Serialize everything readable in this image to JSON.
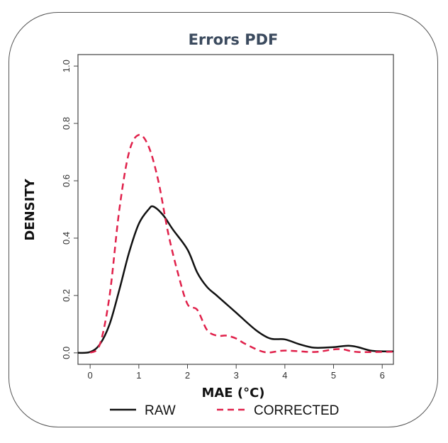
{
  "chart_data": {
    "type": "line",
    "title": "Errors PDF",
    "xlabel": "MAE (°C)",
    "ylabel": "DENSITY",
    "xlim": [
      -0.25,
      6.23
    ],
    "ylim": [
      -0.04,
      1.04
    ],
    "xticks": [
      "0",
      "1",
      "2",
      "3",
      "4",
      "5",
      "6"
    ],
    "yticks": [
      "0.0",
      "0.2",
      "0.4",
      "0.6",
      "0.8",
      "1.0"
    ],
    "grid": false,
    "legend_position": "bottom",
    "series": [
      {
        "name": "RAW",
        "color": "#111111",
        "style": "solid",
        "x": [
          -0.25,
          0,
          0.2,
          0.4,
          0.6,
          0.8,
          1.0,
          1.2,
          1.3,
          1.5,
          1.7,
          2.0,
          2.2,
          2.4,
          2.6,
          2.8,
          3.0,
          3.4,
          3.7,
          4.0,
          4.3,
          4.6,
          5.0,
          5.3,
          5.5,
          5.8,
          6.23
        ],
        "y": [
          0,
          0.003,
          0.03,
          0.1,
          0.22,
          0.35,
          0.45,
          0.5,
          0.51,
          0.48,
          0.43,
          0.36,
          0.28,
          0.23,
          0.2,
          0.17,
          0.14,
          0.08,
          0.05,
          0.047,
          0.03,
          0.018,
          0.02,
          0.025,
          0.02,
          0.007,
          0.005
        ]
      },
      {
        "name": "CORRECTED",
        "color": "#e0204a",
        "style": "dashed",
        "x": [
          0,
          0.2,
          0.4,
          0.6,
          0.8,
          1.0,
          1.2,
          1.4,
          1.6,
          1.8,
          2.0,
          2.2,
          2.4,
          2.6,
          2.8,
          3.0,
          3.2,
          3.6,
          4.0,
          4.6,
          5.0,
          5.2,
          5.5,
          6.23
        ],
        "y": [
          0,
          0.03,
          0.2,
          0.5,
          0.7,
          0.76,
          0.72,
          0.6,
          0.42,
          0.28,
          0.17,
          0.15,
          0.08,
          0.06,
          0.06,
          0.05,
          0.03,
          0.002,
          0.008,
          0.003,
          0.012,
          0.012,
          0.003,
          0.004
        ]
      }
    ]
  }
}
